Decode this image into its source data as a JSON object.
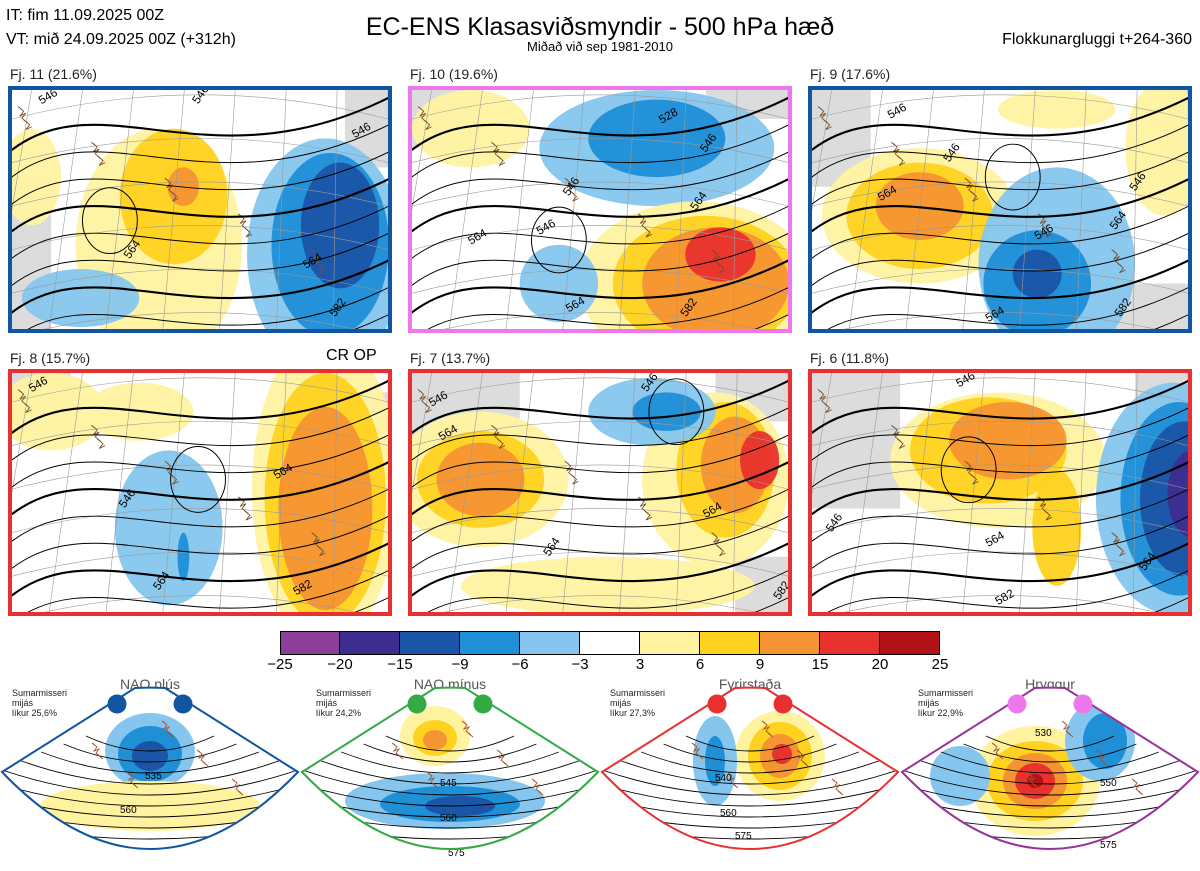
{
  "header": {
    "it": "IT: fim 11.09.2025 00Z",
    "vt": "VT: mið 24.09.2025 00Z  (+312h)",
    "title": "EC-ENS Klasasviðsmyndir - 500 hPa hæð",
    "subtitle": "Miðað við sep 1981-2010",
    "window": "Flokkunargluggi t+264-360"
  },
  "panels": [
    {
      "label": "Fj. 11 (21.6%)",
      "border_color": "#1155a0",
      "contour_labels": [
        "546",
        "546",
        "546",
        "564",
        "564",
        "582"
      ],
      "extra": ""
    },
    {
      "label": "Fj. 10 (19.6%)",
      "border_color": "#ee77ee",
      "contour_labels": [
        "528",
        "546",
        "546",
        "546",
        "564",
        "564",
        "564",
        "582"
      ],
      "extra": ""
    },
    {
      "label": "Fj. 9 (17.6%)",
      "border_color": "#1155a0",
      "contour_labels": [
        "546",
        "546",
        "546",
        "546",
        "564",
        "564",
        "564",
        "582"
      ],
      "extra": ""
    },
    {
      "label": "Fj. 8 (15.7%)",
      "border_color": "#e83030",
      "contour_labels": [
        "546",
        "546",
        "564",
        "564",
        "582"
      ],
      "extra": "CR OP"
    },
    {
      "label": "Fj. 7 (13.7%)",
      "border_color": "#e83030",
      "contour_labels": [
        "546",
        "546",
        "564",
        "564",
        "564",
        "582"
      ],
      "extra": ""
    },
    {
      "label": "Fj. 6 (11.8%)",
      "border_color": "#e83030",
      "contour_labels": [
        "546",
        "546",
        "564",
        "564",
        "582"
      ],
      "extra": ""
    }
  ],
  "colorbar": {
    "ticks": [
      "−25",
      "−20",
      "−15",
      "−9",
      "−6",
      "−3",
      "3",
      "6",
      "9",
      "15",
      "20",
      "25"
    ],
    "colors": [
      "#8b3f9a",
      "#3d2d8f",
      "#1b55a8",
      "#1f8fd6",
      "#86c6ee",
      "#ffffff",
      "#fff3a0",
      "#ffd21f",
      "#f59433",
      "#e8322e",
      "#b01218"
    ]
  },
  "regimes": [
    {
      "name": "NAO plús",
      "stat1": "Sumarmisseri",
      "stat2": "mijás",
      "stat3": "líkur 25,6%",
      "color": "#1155a0",
      "dot_color": "#1155a0",
      "contour_labels": [
        "535",
        "560"
      ]
    },
    {
      "name": "NAO mínus",
      "stat1": "Sumarmisseri",
      "stat2": "mijás",
      "stat3": "líkur 24,2%",
      "color": "#33aa44",
      "dot_color": "#33aa44",
      "contour_labels": [
        "545",
        "560",
        "575"
      ]
    },
    {
      "name": "Fyrirstaða",
      "stat1": "Sumarmisseri",
      "stat2": "mijás",
      "stat3": "líkur 27,3%",
      "color": "#e83030",
      "dot_color": "#e83030",
      "contour_labels": [
        "540",
        "560",
        "575"
      ]
    },
    {
      "name": "Hryggur",
      "stat1": "Sumarmisseri",
      "stat2": "mijás",
      "stat3": "líkur 22,9%",
      "color": "#993399",
      "dot_color": "#ee77ee",
      "contour_labels": [
        "530",
        "550",
        "575"
      ]
    }
  ],
  "chart_data": {
    "type": "heatmap",
    "title": "EC-ENS Klasasviðsmyndir - 500 hPa hæð",
    "variable": "500 hPa geopotential height anomaly",
    "contour_interval_dam": 6,
    "colorbar_levels": [
      -25,
      -20,
      -15,
      -9,
      -6,
      -3,
      3,
      6,
      9,
      15,
      20,
      25
    ],
    "clusters": [
      {
        "name": "Fj. 11",
        "probability_pct": 21.6
      },
      {
        "name": "Fj. 10",
        "probability_pct": 19.6
      },
      {
        "name": "Fj. 9",
        "probability_pct": 17.6
      },
      {
        "name": "Fj. 8",
        "probability_pct": 15.7
      },
      {
        "name": "Fj. 7",
        "probability_pct": 13.7
      },
      {
        "name": "Fj. 6",
        "probability_pct": 11.8
      }
    ],
    "regimes": [
      {
        "name": "NAO plús",
        "probability_pct": 25.6
      },
      {
        "name": "NAO mínus",
        "probability_pct": 24.2
      },
      {
        "name": "Fyrirstaða",
        "probability_pct": 27.3
      },
      {
        "name": "Hryggur",
        "probability_pct": 22.9
      }
    ]
  }
}
